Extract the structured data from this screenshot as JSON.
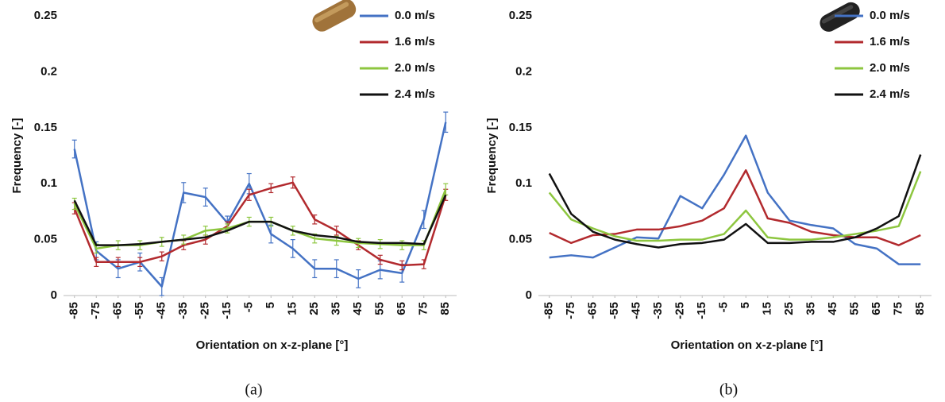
{
  "chart_data": [
    {
      "type": "line",
      "caption": "(a)",
      "xlabel": "Orientation on x-z-plane [°]",
      "ylabel": "Frequency [-]",
      "x": [
        -85,
        -75,
        -65,
        -55,
        -45,
        -35,
        -25,
        -15,
        -5,
        5,
        15,
        25,
        35,
        45,
        55,
        65,
        75,
        85
      ],
      "xlim": [
        -90,
        90
      ],
      "xticks": [
        -85,
        -75,
        -65,
        -55,
        -45,
        -35,
        -25,
        -15,
        -5,
        5,
        15,
        25,
        35,
        45,
        55,
        65,
        75,
        85
      ],
      "ylim": [
        0,
        0.25
      ],
      "yticks": [
        0,
        0.05,
        0.1,
        0.15,
        0.2,
        0.25
      ],
      "legend": "upper right",
      "series": [
        {
          "name": "0.0 m/s",
          "color": "#4472c4",
          "values": [
            0.131,
            0.04,
            0.024,
            0.03,
            0.008,
            0.092,
            0.088,
            0.065,
            0.1,
            0.055,
            0.042,
            0.024,
            0.024,
            0.015,
            0.023,
            0.02,
            0.068,
            0.155
          ],
          "errors": [
            0.008,
            0.008,
            0.008,
            0.008,
            0.008,
            0.009,
            0.008,
            0.006,
            0.009,
            0.008,
            0.008,
            0.008,
            0.008,
            0.008,
            0.008,
            0.008,
            0.008,
            0.009
          ]
        },
        {
          "name": "1.6 m/s",
          "color": "#b22a2e",
          "values": [
            0.078,
            0.03,
            0.03,
            0.03,
            0.035,
            0.045,
            0.05,
            0.062,
            0.09,
            0.096,
            0.101,
            0.068,
            0.058,
            0.045,
            0.032,
            0.027,
            0.028,
            0.09
          ],
          "errors": [
            0.005,
            0.004,
            0.004,
            0.004,
            0.004,
            0.004,
            0.004,
            0.004,
            0.005,
            0.004,
            0.005,
            0.004,
            0.004,
            0.004,
            0.004,
            0.004,
            0.004,
            0.005
          ]
        },
        {
          "name": "2.0 m/s",
          "color": "#8dc63f",
          "values": [
            0.082,
            0.042,
            0.045,
            0.045,
            0.048,
            0.05,
            0.058,
            0.06,
            0.066,
            0.066,
            0.058,
            0.051,
            0.049,
            0.047,
            0.046,
            0.045,
            0.045,
            0.095
          ],
          "errors": [
            0.005,
            0.004,
            0.004,
            0.004,
            0.004,
            0.004,
            0.004,
            0.004,
            0.004,
            0.004,
            0.004,
            0.004,
            0.004,
            0.004,
            0.004,
            0.004,
            0.004,
            0.005
          ]
        },
        {
          "name": "2.4 m/s",
          "color": "#111111",
          "values": [
            0.085,
            0.045,
            0.045,
            0.046,
            0.048,
            0.05,
            0.052,
            0.058,
            0.066,
            0.066,
            0.058,
            0.054,
            0.052,
            0.048,
            0.047,
            0.047,
            0.046,
            0.09
          ]
        }
      ]
    },
    {
      "type": "line",
      "caption": "(b)",
      "xlabel": "Orientation on x-z-plane [°]",
      "ylabel": "Frequency [-]",
      "x": [
        -85,
        -75,
        -65,
        -55,
        -45,
        -35,
        -25,
        -15,
        -5,
        5,
        15,
        25,
        35,
        45,
        55,
        65,
        75,
        85
      ],
      "xlim": [
        -90,
        90
      ],
      "xticks": [
        -85,
        -75,
        -65,
        -55,
        -45,
        -35,
        -25,
        -15,
        -5,
        5,
        15,
        25,
        35,
        45,
        55,
        65,
        75,
        85
      ],
      "ylim": [
        0,
        0.25
      ],
      "yticks": [
        0,
        0.05,
        0.1,
        0.15,
        0.2,
        0.25
      ],
      "legend": "upper right",
      "series": [
        {
          "name": "0.0 m/s",
          "color": "#4472c4",
          "values": [
            0.034,
            0.036,
            0.034,
            0.043,
            0.052,
            0.051,
            0.089,
            0.078,
            0.108,
            0.143,
            0.092,
            0.067,
            0.063,
            0.06,
            0.046,
            0.042,
            0.028,
            0.028
          ]
        },
        {
          "name": "1.6 m/s",
          "color": "#b22a2e",
          "values": [
            0.056,
            0.047,
            0.054,
            0.055,
            0.059,
            0.059,
            0.062,
            0.067,
            0.078,
            0.112,
            0.069,
            0.065,
            0.057,
            0.054,
            0.052,
            0.052,
            0.045,
            0.054
          ]
        },
        {
          "name": "2.0 m/s",
          "color": "#8dc63f",
          "values": [
            0.092,
            0.068,
            0.06,
            0.053,
            0.049,
            0.049,
            0.05,
            0.05,
            0.055,
            0.076,
            0.052,
            0.05,
            0.05,
            0.052,
            0.055,
            0.058,
            0.062,
            0.111
          ]
        },
        {
          "name": "2.4 m/s",
          "color": "#111111",
          "values": [
            0.109,
            0.073,
            0.057,
            0.05,
            0.046,
            0.043,
            0.046,
            0.047,
            0.05,
            0.064,
            0.047,
            0.047,
            0.048,
            0.048,
            0.052,
            0.06,
            0.071,
            0.126
          ]
        }
      ]
    }
  ]
}
